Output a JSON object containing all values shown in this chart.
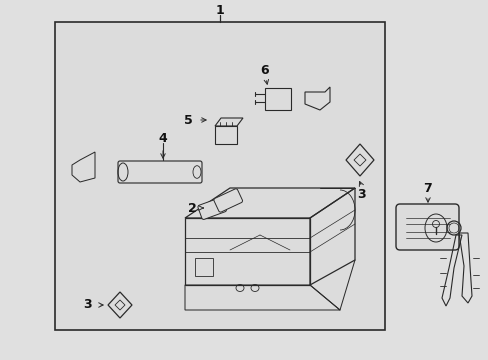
{
  "bg_color": "#e0e0e0",
  "inner_bg": "#dcdcdc",
  "line_color": "#2a2a2a",
  "label_color": "#111111",
  "fig_width": 4.89,
  "fig_height": 3.6
}
